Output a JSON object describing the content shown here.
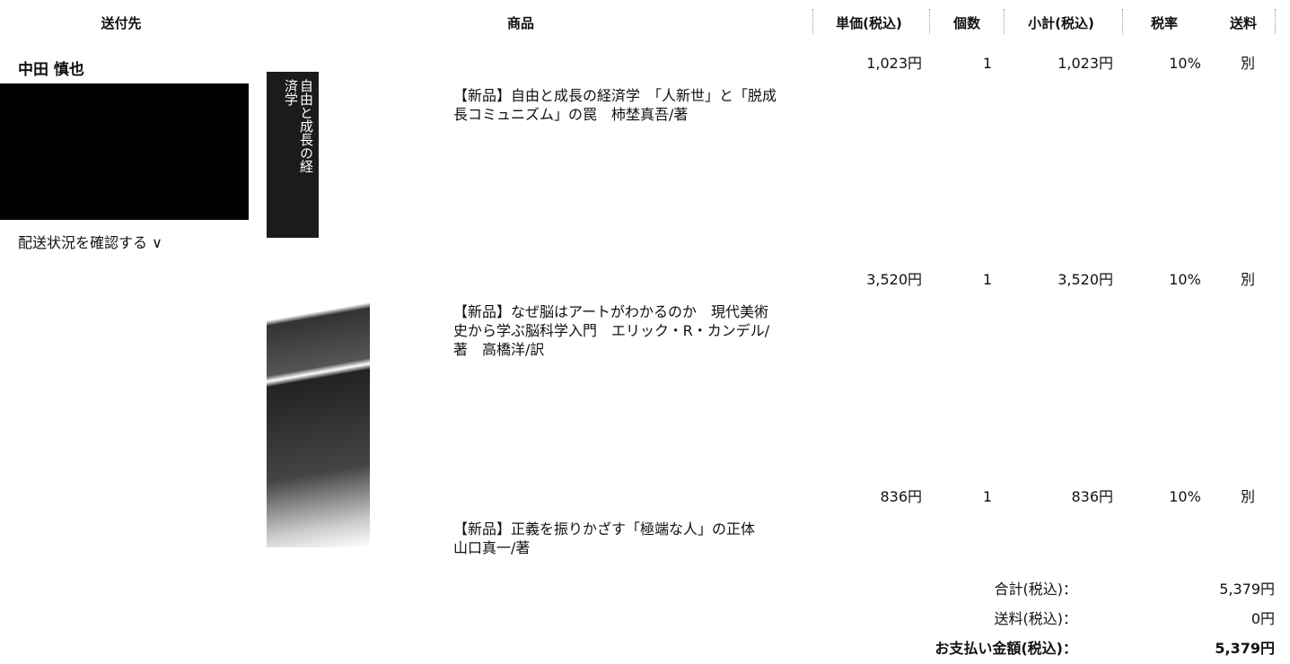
{
  "header": {
    "recipient": "送付先",
    "product": "商品",
    "unit_price": "単価(税込)",
    "quantity": "個数",
    "subtotal": "小計(税込)",
    "tax_rate": "税率",
    "shipping": "送料"
  },
  "recipient": {
    "name": "中田 慎也",
    "tracking_link": "配送状況を確認する"
  },
  "covers": [
    {
      "title": "自由と成長の経済学"
    }
  ],
  "items": [
    {
      "title": "【新品】自由と成長の経済学　「人新世」と「脱成長コミュニズム」の罠　柿埜真吾/著",
      "unit_price": "1,023円",
      "quantity": "1",
      "subtotal": "1,023円",
      "tax_rate": "10%",
      "shipping": "別"
    },
    {
      "title": "【新品】なぜ脳はアートがわかるのか　現代美術史から学ぶ脳科学入門　エリック・R・カンデル/著　高橋洋/訳",
      "unit_price": "3,520円",
      "quantity": "1",
      "subtotal": "3,520円",
      "tax_rate": "10%",
      "shipping": "別"
    },
    {
      "title": "【新品】正義を振りかざす「極端な人」の正体　山口真一/著",
      "unit_price": "836円",
      "quantity": "1",
      "subtotal": "836円",
      "tax_rate": "10%",
      "shipping": "別"
    }
  ],
  "totals": [
    {
      "label": "合計(税込)：",
      "value": "5,379円"
    },
    {
      "label": "送料(税込)：",
      "value": "0円"
    },
    {
      "label": "お支払い金額(税込)：",
      "value": "5,379円"
    }
  ]
}
